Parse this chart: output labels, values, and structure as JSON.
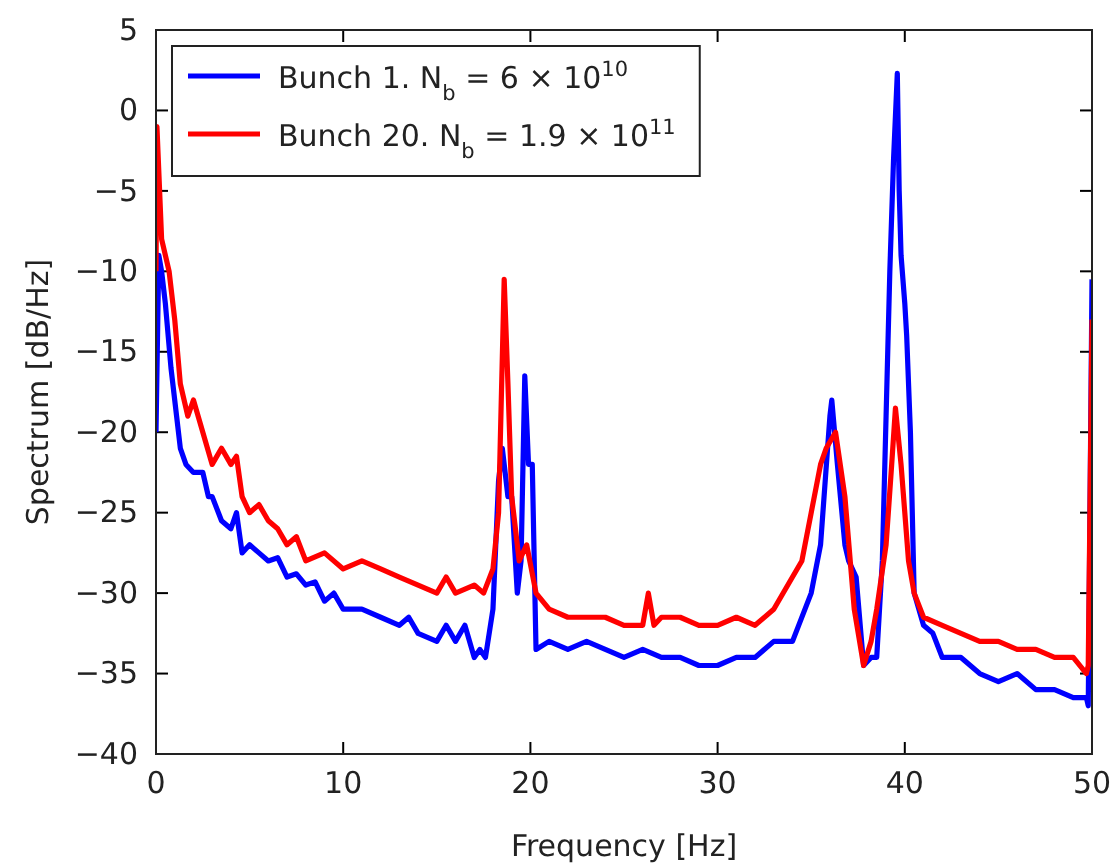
{
  "chart_data": {
    "type": "line",
    "xlabel": "Frequency [Hz]",
    "ylabel": "Spectrum [dB/Hz]",
    "xlim": [
      0,
      50
    ],
    "ylim": [
      -40,
      5
    ],
    "xticks": [
      0,
      10,
      20,
      30,
      40,
      50
    ],
    "yticks": [
      -40,
      -35,
      -30,
      -25,
      -20,
      -15,
      -10,
      -5,
      0,
      5
    ],
    "grid": false,
    "legend": "top left",
    "line_style": "solid",
    "marker": "none",
    "series": [
      {
        "name": "Bunch 1. N$_{b}$ = 6 × 10$^{10}$",
        "color": "#0000ff",
        "x": [
          0,
          0.15,
          0.3,
          0.5,
          0.8,
          1.1,
          1.3,
          1.6,
          2,
          2.5,
          2.8,
          3,
          3.5,
          4,
          4.3,
          4.6,
          5,
          5.5,
          6,
          6.5,
          7,
          7.5,
          8,
          8.5,
          9,
          9.5,
          10,
          11,
          12,
          13,
          13.5,
          14,
          15,
          15.5,
          16,
          16.5,
          17,
          17.3,
          17.6,
          18,
          18.3,
          18.5,
          18.8,
          19,
          19.3,
          19.5,
          19.7,
          19.9,
          20.1,
          20.3,
          21,
          22,
          23,
          24,
          25,
          26,
          27,
          28,
          29,
          30,
          31,
          32,
          33,
          34,
          35,
          35.5,
          36,
          36.1,
          36.4,
          36.8,
          37,
          37.4,
          37.8,
          38.2,
          38.5,
          38.8,
          39,
          39.2,
          39.4,
          39.6,
          39.7,
          39.8,
          40,
          40.1,
          40.3,
          40.5,
          41,
          41.5,
          42,
          43,
          44,
          45,
          46,
          47,
          48,
          49,
          49.7,
          49.8,
          50
        ],
        "values": [
          -20,
          -9,
          -10,
          -12,
          -16,
          -19,
          -21,
          -22,
          -22.5,
          -22.5,
          -24,
          -24,
          -25.5,
          -26,
          -25,
          -27.5,
          -27,
          -27.5,
          -28,
          -27.8,
          -29,
          -28.8,
          -29.5,
          -29.3,
          -30.5,
          -30,
          -31,
          -31,
          -31.5,
          -32,
          -31.5,
          -32.5,
          -33,
          -32,
          -33,
          -32,
          -34,
          -33.5,
          -34,
          -31,
          -23,
          -21,
          -24,
          -24,
          -30,
          -28,
          -16.5,
          -22,
          -22,
          -33.5,
          -33,
          -33.5,
          -33,
          -33.5,
          -34,
          -33.5,
          -34,
          -34,
          -34.5,
          -34.5,
          -34,
          -34,
          -33,
          -33,
          -30,
          -27,
          -19,
          -18,
          -22,
          -27,
          -28,
          -29,
          -34.5,
          -34,
          -34,
          -28,
          -19,
          -10,
          -3,
          2.3,
          -5,
          -9,
          -12,
          -14,
          -20,
          -30,
          -32,
          -32.5,
          -34,
          -34,
          -35,
          -35.5,
          -35,
          -36,
          -36,
          -36.5,
          -36.5,
          -37,
          -10.5
        ]
      },
      {
        "name": "Bunch 20. N$_{b}$ = 1.9 × 10$^{11}$",
        "color": "#ff0000",
        "x": [
          0,
          0.05,
          0.3,
          0.7,
          1,
          1.3,
          1.7,
          2,
          2.5,
          3,
          3.5,
          4,
          4.3,
          4.6,
          5,
          5.5,
          6,
          6.5,
          7,
          7.5,
          8,
          9,
          10,
          11,
          12,
          13,
          14,
          15,
          15.5,
          16,
          17,
          17.5,
          18,
          18.3,
          18.6,
          18.8,
          19,
          19.4,
          19.8,
          20.3,
          21,
          22,
          23,
          24,
          25,
          26,
          26.3,
          26.6,
          27,
          28,
          29,
          30,
          31,
          32,
          33,
          34,
          34.5,
          35,
          35.5,
          35.8,
          36.3,
          36.8,
          37.3,
          37.8,
          38.2,
          38.5,
          39,
          39.3,
          39.5,
          39.8,
          40.2,
          40.5,
          41,
          42,
          43,
          44,
          45,
          46,
          47,
          48,
          49,
          49.7,
          49.8,
          50
        ],
        "values": [
          -10,
          -1,
          -8,
          -10,
          -13,
          -17,
          -19,
          -18,
          -20,
          -22,
          -21,
          -22,
          -21.5,
          -24,
          -25,
          -24.5,
          -25.5,
          -26,
          -27,
          -26.5,
          -28,
          -27.5,
          -28.5,
          -28,
          -28.5,
          -29,
          -29.5,
          -30,
          -29,
          -30,
          -29.5,
          -30,
          -28.5,
          -25,
          -10.5,
          -17,
          -24,
          -28,
          -27,
          -30,
          -31,
          -31.5,
          -31.5,
          -31.5,
          -32,
          -32,
          -30,
          -32,
          -31.5,
          -31.5,
          -32,
          -32,
          -31.5,
          -32,
          -31,
          -29,
          -28,
          -25,
          -22,
          -21,
          -20,
          -24,
          -31,
          -34.5,
          -33,
          -31,
          -27,
          -22,
          -18.5,
          -22,
          -28,
          -30,
          -31.5,
          -32,
          -32.5,
          -33,
          -33,
          -33.5,
          -33.5,
          -34,
          -34,
          -35,
          -34.5,
          -13
        ]
      }
    ]
  }
}
